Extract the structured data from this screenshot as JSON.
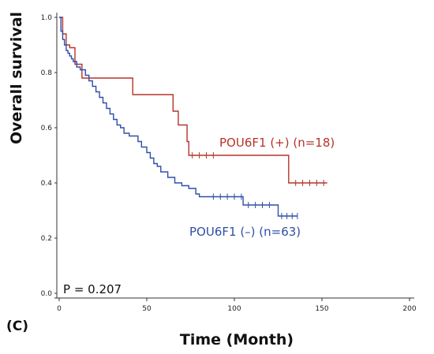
{
  "panel_label": "(C)",
  "chart_data": {
    "type": "line",
    "xlabel": "Time (Month)",
    "ylabel": "Overall survival",
    "xlim": [
      0,
      200
    ],
    "ylim": [
      0,
      1.0
    ],
    "x_ticks": [
      0,
      50,
      100,
      150,
      200
    ],
    "x_tick_labels": [
      "0",
      "50",
      "100",
      "150",
      "200"
    ],
    "y_ticks": [
      0,
      0.2,
      0.4,
      0.6,
      0.8,
      1.0
    ],
    "y_tick_labels": [
      "0.0",
      "0.2",
      "0.4",
      "0.6",
      "0.8",
      "1.0"
    ],
    "annotation": "P = 0.207",
    "series": [
      {
        "name": "POU6F1 (+) (n=18)",
        "color": "#b5342a",
        "x": [
          0,
          2,
          4,
          6,
          9,
          13,
          42,
          65,
          68,
          73,
          74,
          131,
          153
        ],
        "y": [
          1.0,
          0.94,
          0.9,
          0.89,
          0.83,
          0.78,
          0.72,
          0.66,
          0.61,
          0.55,
          0.5,
          0.4,
          0.4
        ],
        "censored": [
          [
            76,
            0.5
          ],
          [
            80,
            0.5
          ],
          [
            84,
            0.5
          ],
          [
            88,
            0.5
          ],
          [
            135,
            0.4
          ],
          [
            139,
            0.4
          ],
          [
            143,
            0.4
          ],
          [
            147,
            0.4
          ],
          [
            151,
            0.4
          ]
        ]
      },
      {
        "name": "POU6F1 (–) (n=63)",
        "color": "#2f4fa8",
        "x": [
          0,
          1,
          2,
          3,
          4,
          5,
          6,
          7,
          8,
          10,
          12,
          15,
          17,
          19,
          21,
          23,
          25,
          27,
          29,
          31,
          33,
          35,
          37,
          40,
          45,
          47,
          50,
          52,
          54,
          56,
          58,
          62,
          66,
          70,
          74,
          78,
          80,
          105,
          125,
          136
        ],
        "y": [
          1.0,
          0.95,
          0.92,
          0.9,
          0.88,
          0.87,
          0.86,
          0.85,
          0.84,
          0.82,
          0.81,
          0.79,
          0.77,
          0.75,
          0.73,
          0.71,
          0.69,
          0.67,
          0.65,
          0.63,
          0.61,
          0.6,
          0.58,
          0.57,
          0.55,
          0.53,
          0.51,
          0.49,
          0.47,
          0.46,
          0.44,
          0.42,
          0.4,
          0.39,
          0.38,
          0.36,
          0.35,
          0.32,
          0.28,
          0.28
        ]
      }
    ]
  }
}
